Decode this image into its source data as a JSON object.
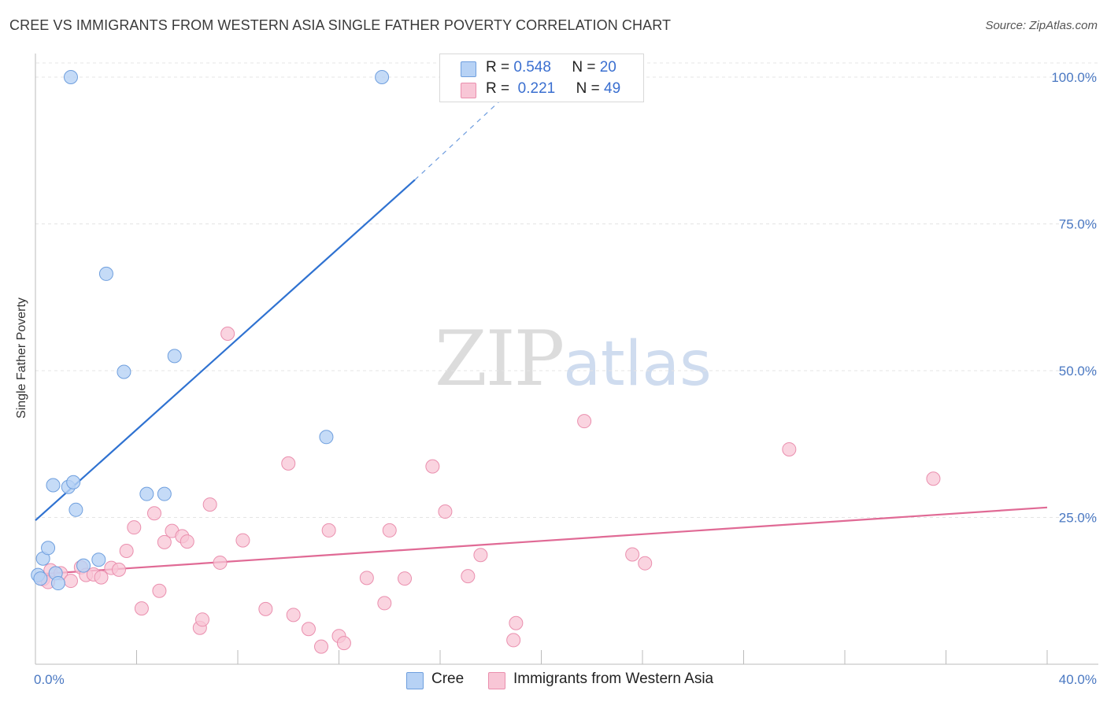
{
  "header": {
    "title": "CREE VS IMMIGRANTS FROM WESTERN ASIA SINGLE FATHER POVERTY CORRELATION CHART",
    "source": "Source: ZipAtlas.com"
  },
  "watermark": {
    "zip": "ZIP",
    "atlas": "atlas"
  },
  "legend": {
    "rows": [
      {
        "r_label": "R =",
        "r_value": "0.548",
        "n_label": "N =",
        "n_value": "20"
      },
      {
        "r_label": "R =",
        "r_value": "0.221",
        "n_label": "N =",
        "n_value": "49"
      }
    ]
  },
  "colors": {
    "cree_fill": "#b7d2f5",
    "cree_stroke": "#6f9fde",
    "cree_line": "#2f72d1",
    "asia_fill": "#f8c6d6",
    "asia_stroke": "#ea8fae",
    "asia_line": "#e06a95",
    "tick_text": "#4a78c2",
    "grid": "#e4e4e4"
  },
  "chart_data": {
    "type": "scatter",
    "title": "CREE VS IMMIGRANTS FROM WESTERN ASIA SINGLE FATHER POVERTY CORRELATION CHART",
    "xlabel": "",
    "ylabel": "Single Father Poverty",
    "xlim": [
      0,
      40
    ],
    "ylim": [
      0,
      105
    ],
    "x_ticks": [
      "0.0%",
      "40.0%"
    ],
    "y_ticks": [
      {
        "value": 25,
        "label": "25.0%"
      },
      {
        "value": 50,
        "label": "50.0%"
      },
      {
        "value": 75,
        "label": "75.0%"
      },
      {
        "value": 100,
        "label": "100.0%"
      }
    ],
    "grid": true,
    "legend_position": "top-center",
    "series": [
      {
        "name": "Cree",
        "R": 0.548,
        "N": 20,
        "trend": {
          "x": [
            0,
            15.0
          ],
          "y": [
            24.5,
            82.5
          ],
          "dashed_to": {
            "x": 18.5,
            "y": 96.5
          }
        },
        "points": [
          {
            "x": 0.1,
            "y": 15.2
          },
          {
            "x": 0.2,
            "y": 14.6
          },
          {
            "x": 0.3,
            "y": 18.0
          },
          {
            "x": 0.5,
            "y": 19.8
          },
          {
            "x": 0.7,
            "y": 30.5
          },
          {
            "x": 0.8,
            "y": 15.5
          },
          {
            "x": 0.9,
            "y": 13.8
          },
          {
            "x": 1.3,
            "y": 30.2
          },
          {
            "x": 1.5,
            "y": 31.0
          },
          {
            "x": 1.6,
            "y": 26.3
          },
          {
            "x": 1.9,
            "y": 16.8
          },
          {
            "x": 2.5,
            "y": 17.8
          },
          {
            "x": 1.4,
            "y": 100.0
          },
          {
            "x": 13.7,
            "y": 100.0
          },
          {
            "x": 2.8,
            "y": 66.5
          },
          {
            "x": 3.5,
            "y": 49.8
          },
          {
            "x": 5.5,
            "y": 52.5
          },
          {
            "x": 11.5,
            "y": 38.7
          },
          {
            "x": 4.4,
            "y": 29.0
          },
          {
            "x": 5.1,
            "y": 29.0
          }
        ]
      },
      {
        "name": "Immigrants from Western Asia",
        "R": 0.221,
        "N": 49,
        "trend": {
          "x": [
            0,
            40
          ],
          "y": [
            15.3,
            26.7
          ]
        },
        "points": [
          {
            "x": 0.3,
            "y": 14.5
          },
          {
            "x": 0.6,
            "y": 16.0
          },
          {
            "x": 1.0,
            "y": 15.5
          },
          {
            "x": 1.4,
            "y": 14.2
          },
          {
            "x": 1.8,
            "y": 16.5
          },
          {
            "x": 2.0,
            "y": 15.2
          },
          {
            "x": 2.3,
            "y": 15.3
          },
          {
            "x": 2.6,
            "y": 14.8
          },
          {
            "x": 3.0,
            "y": 16.4
          },
          {
            "x": 3.3,
            "y": 16.1
          },
          {
            "x": 3.6,
            "y": 19.3
          },
          {
            "x": 3.9,
            "y": 23.3
          },
          {
            "x": 4.2,
            "y": 9.5
          },
          {
            "x": 4.7,
            "y": 25.7
          },
          {
            "x": 4.9,
            "y": 12.5
          },
          {
            "x": 5.1,
            "y": 20.8
          },
          {
            "x": 5.4,
            "y": 22.7
          },
          {
            "x": 5.8,
            "y": 21.8
          },
          {
            "x": 6.0,
            "y": 20.9
          },
          {
            "x": 6.5,
            "y": 6.2
          },
          {
            "x": 6.6,
            "y": 7.6
          },
          {
            "x": 6.9,
            "y": 27.2
          },
          {
            "x": 7.3,
            "y": 17.3
          },
          {
            "x": 7.6,
            "y": 56.3
          },
          {
            "x": 8.2,
            "y": 21.1
          },
          {
            "x": 9.1,
            "y": 9.4
          },
          {
            "x": 10.0,
            "y": 34.2
          },
          {
            "x": 10.2,
            "y": 8.4
          },
          {
            "x": 10.8,
            "y": 6.0
          },
          {
            "x": 11.3,
            "y": 3.0
          },
          {
            "x": 11.6,
            "y": 22.8
          },
          {
            "x": 12.0,
            "y": 4.8
          },
          {
            "x": 12.2,
            "y": 3.6
          },
          {
            "x": 13.1,
            "y": 14.7
          },
          {
            "x": 13.8,
            "y": 10.4
          },
          {
            "x": 14.0,
            "y": 22.8
          },
          {
            "x": 14.6,
            "y": 14.6
          },
          {
            "x": 15.7,
            "y": 33.7
          },
          {
            "x": 16.2,
            "y": 26.0
          },
          {
            "x": 17.1,
            "y": 15.0
          },
          {
            "x": 17.6,
            "y": 18.6
          },
          {
            "x": 18.9,
            "y": 4.1
          },
          {
            "x": 19.0,
            "y": 7.0
          },
          {
            "x": 21.7,
            "y": 41.4
          },
          {
            "x": 23.6,
            "y": 18.7
          },
          {
            "x": 24.1,
            "y": 17.2
          },
          {
            "x": 29.8,
            "y": 36.6
          },
          {
            "x": 35.5,
            "y": 31.6
          },
          {
            "x": 0.5,
            "y": 14.0
          }
        ]
      }
    ]
  },
  "bottom_legend": {
    "items": [
      {
        "label": "Cree"
      },
      {
        "label": "Immigrants from Western Asia"
      }
    ]
  }
}
